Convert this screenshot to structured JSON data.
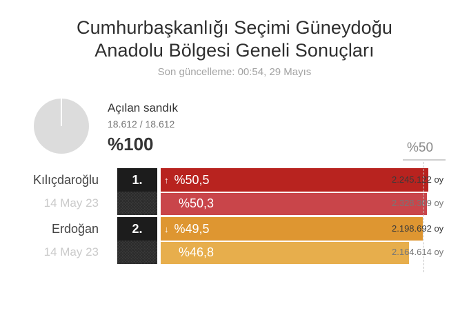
{
  "title_line1": "Cumhurbaşkanlığı Seçimi Güneydoğu",
  "title_line2": "Anadolu Bölgesi Geneli Sonuçları",
  "updated": "Son güncelleme: 00:54, 29 Mayıs",
  "ballots": {
    "label": "Açılan sandık",
    "count": "18.612 / 18.612",
    "percent": "%100",
    "opened_fraction": 1.0
  },
  "majority_label": "%50",
  "colors": {
    "kilicdaroglu_current": "#b8231f",
    "kilicdaroglu_previous": "#c9454a",
    "erdogan_current": "#de9631",
    "erdogan_previous": "#e7ae4c"
  },
  "candidates": [
    {
      "name": "Kılıçdaroğlu",
      "rank": "1.",
      "arrow": "↑",
      "percent": "%50,5",
      "share": 50.5,
      "votes": "2.245.122 oy",
      "previous": {
        "date": "14 May 23",
        "percent": "%50,3",
        "share": 50.3,
        "votes": "2.328.309 oy"
      }
    },
    {
      "name": "Erdoğan",
      "rank": "2.",
      "arrow": "↓",
      "percent": "%49,5",
      "share": 49.5,
      "votes": "2.198.692 oy",
      "previous": {
        "date": "14 May 23",
        "percent": "%46,8",
        "share": 46.8,
        "votes": "2.164.614 oy"
      }
    }
  ]
}
